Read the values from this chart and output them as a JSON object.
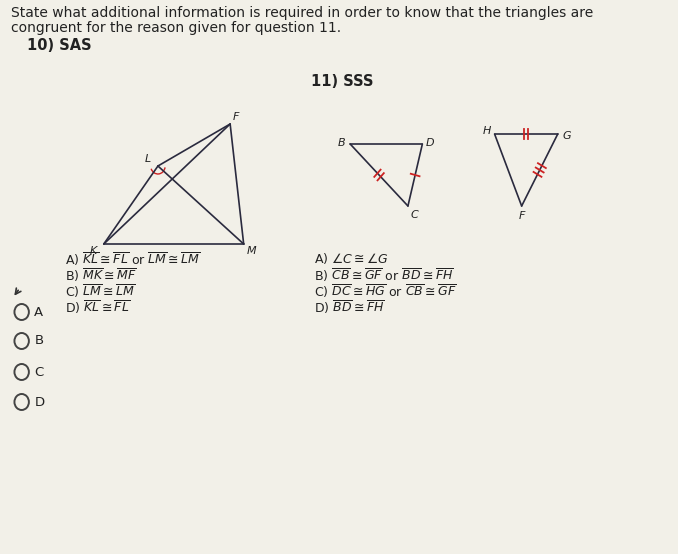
{
  "title_line1": "State what additional information is required in order to know that the triangles are",
  "title_line2": "congruent for the reason given for question 11.",
  "q10_label": "10) SAS",
  "q11_label": "11) SSS",
  "bg_color": "#f2f0e8",
  "text_color": "#222222",
  "radio_labels": [
    "A",
    "B",
    "C",
    "D"
  ]
}
